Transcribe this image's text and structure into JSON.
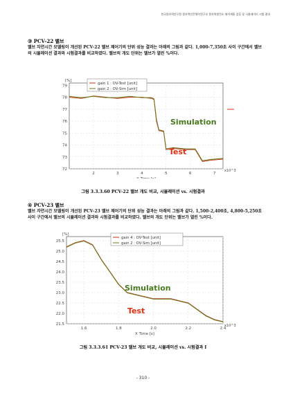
{
  "header": "한국원자력연구원 원자력안전해석연구부 원자력발전소 제어계통 검증 및 시뮬레이터 시험 결과",
  "section1": {
    "title": "③ PCV-22 밸브",
    "para": "밸브 자연시간 모델링이 개선된 PCV-22 밸브 제어기의 단위 성능 결과는 아래의 그림과 같다. 1,000-7,350초 사이 구간에서 밸브의 시뮬레이션 결과와 시험결과를 비교하였다. 밸브의 개도 단위는 밸브가 열린 %이다.",
    "caption": "그림 3.3.3.60 PCV-22 밸브 개도 비교, 시뮬레이션 vs. 시험결과"
  },
  "section2": {
    "title": "④ PCV-23 밸브",
    "para": "밸브 자연시간 모델링이 개선된 PCV-23 밸브 제어기의 단위 성능 결과는 아래의 그림과 같다. 1,500-2,400초, 4,800-5,250초 사이 구간에서 밸브의 시뮬레이션 결과와 시험결과를 비교하였다. 밸브의 개도 단위는 밸브가 열린 %이다.",
    "caption": "그림 3.3.3.61 PCV-23 밸브 개도 비교, 시뮬레이션 vs. 시험결과 I"
  },
  "footer": "- 310 -",
  "colors": {
    "simulation": "#4a7a1e",
    "test": "#e03010",
    "sim_line": "#6b7a1a",
    "test_line": "#c0301a"
  },
  "chart_data": [
    {
      "type": "line",
      "title": "",
      "ylabel": "[%]",
      "xlabel": "X Time [s]",
      "x_multiplier": "x10^3",
      "x_ticks": [
        "2",
        "3",
        "4",
        "5",
        "6",
        "7"
      ],
      "y_ticks": [
        "79",
        "78",
        "77",
        "76",
        "75",
        "74",
        "73",
        "72"
      ],
      "xlim": [
        1,
        7.35
      ],
      "ylim": [
        72,
        79.2
      ],
      "legend": [
        "gain 1 : OV-Test [unit]",
        "gain 2 : OV-Sim [unit]"
      ],
      "annotations": [
        "Simulation",
        "Test"
      ],
      "series": [
        {
          "name": "gain 1 : OV-Test [unit]",
          "x": [
            1.0,
            1.5,
            2.0,
            2.5,
            3.0,
            3.5,
            4.0,
            4.4,
            4.5,
            4.6,
            4.7,
            4.9,
            5.0,
            5.3,
            5.8,
            6.2,
            6.5,
            6.8,
            7.35
          ],
          "y": [
            78.0,
            77.9,
            78.1,
            78.0,
            77.9,
            78.0,
            78.0,
            77.9,
            77.8,
            76.0,
            75.2,
            75.1,
            73.6,
            73.7,
            73.6,
            73.6,
            72.6,
            72.7,
            72.8
          ]
        },
        {
          "name": "gain 2 : OV-Sim [unit]",
          "x": [
            1.0,
            1.5,
            2.0,
            2.5,
            3.0,
            3.5,
            4.0,
            4.4,
            4.5,
            4.6,
            4.7,
            4.9,
            5.0,
            5.3,
            5.8,
            6.2,
            6.5,
            6.8,
            7.35
          ],
          "y": [
            78.1,
            78.0,
            78.1,
            78.0,
            78.0,
            78.1,
            78.0,
            78.0,
            77.9,
            76.2,
            75.3,
            75.2,
            73.7,
            73.8,
            73.7,
            73.7,
            72.7,
            72.8,
            72.9
          ]
        }
      ]
    },
    {
      "type": "line",
      "title": "",
      "ylabel": "[%]",
      "xlabel": "X Time [s]",
      "x_multiplier": "x10^3",
      "x_ticks": [
        "1.6",
        "1.8",
        "2.0",
        "2.2",
        "2.4"
      ],
      "y_ticks": [
        "25.5",
        "25.0",
        "24.5",
        "24.0",
        "23.5",
        "23.0",
        "22.5",
        "22.0",
        "21.5"
      ],
      "xlim": [
        1.5,
        2.4
      ],
      "ylim": [
        21.5,
        25.7
      ],
      "legend": [
        "gain 4 : OV-Test [unit]",
        "gain 2 : OV-Sim [unit]"
      ],
      "annotations": [
        "Simulation",
        "Test"
      ],
      "series": [
        {
          "name": "gain 4 : OV-Test [unit]",
          "x": [
            1.5,
            1.55,
            1.6,
            1.65,
            1.7,
            1.75,
            1.8,
            1.85,
            1.9,
            1.95,
            2.0,
            2.05,
            2.1,
            2.15,
            2.2,
            2.25,
            2.3,
            2.35,
            2.4
          ],
          "y": [
            25.2,
            25.4,
            25.5,
            25.3,
            24.6,
            24.0,
            23.4,
            23.0,
            22.9,
            22.8,
            22.7,
            22.7,
            22.7,
            22.6,
            22.5,
            22.2,
            21.9,
            21.7,
            21.6
          ]
        },
        {
          "name": "gain 2 : OV-Sim [unit]",
          "x": [
            1.5,
            1.55,
            1.6,
            1.65,
            1.7,
            1.75,
            1.8,
            1.85,
            1.9,
            1.95,
            2.0,
            2.05,
            2.1,
            2.15,
            2.2,
            2.25,
            2.3,
            2.35,
            2.4
          ],
          "y": [
            25.2,
            25.4,
            25.5,
            25.3,
            24.6,
            24.0,
            23.4,
            23.0,
            22.9,
            22.8,
            22.7,
            22.7,
            22.7,
            22.6,
            22.5,
            22.2,
            21.9,
            21.7,
            21.6
          ]
        }
      ]
    }
  ]
}
